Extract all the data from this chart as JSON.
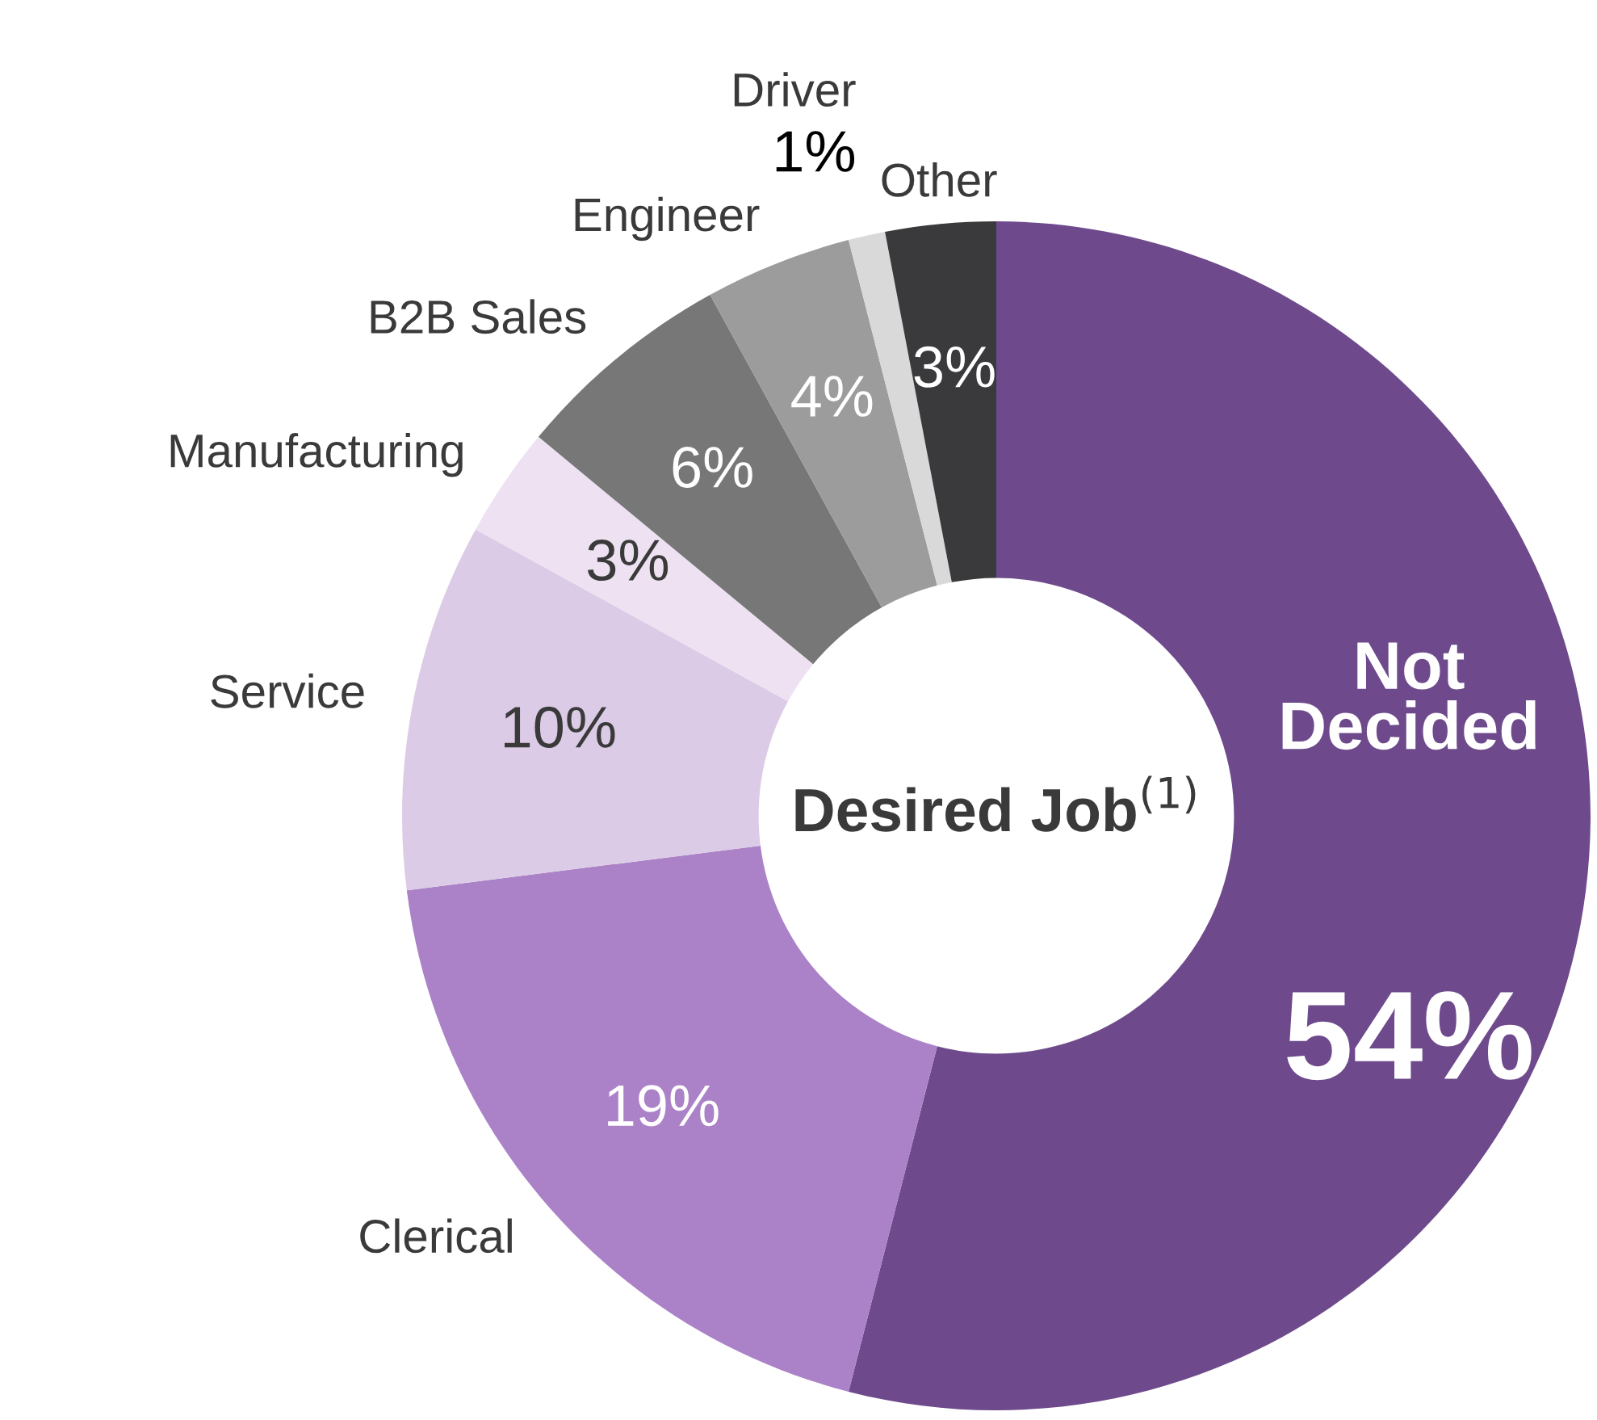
{
  "chart_data": {
    "type": "donut",
    "title": "Desired Job$^{(1)}$",
    "categories": [
      "Not Decided",
      "Clerical",
      "Service",
      "Manufacturing",
      "B2B Sales",
      "Engineer",
      "Driver",
      "Other"
    ],
    "values": [
      54,
      19,
      10,
      3,
      6,
      4,
      1,
      3
    ],
    "value_labels": [
      "54%",
      "19%",
      "10%",
      "3%",
      "6%",
      "4%",
      "1%",
      "3%"
    ],
    "colors": [
      "#6e4a8c",
      "#ab82c8",
      "#dccbe6",
      "#eee2f2",
      "#777777",
      "#9c9c9c",
      "#d9d9d9",
      "#3a3a3c"
    ]
  }
}
